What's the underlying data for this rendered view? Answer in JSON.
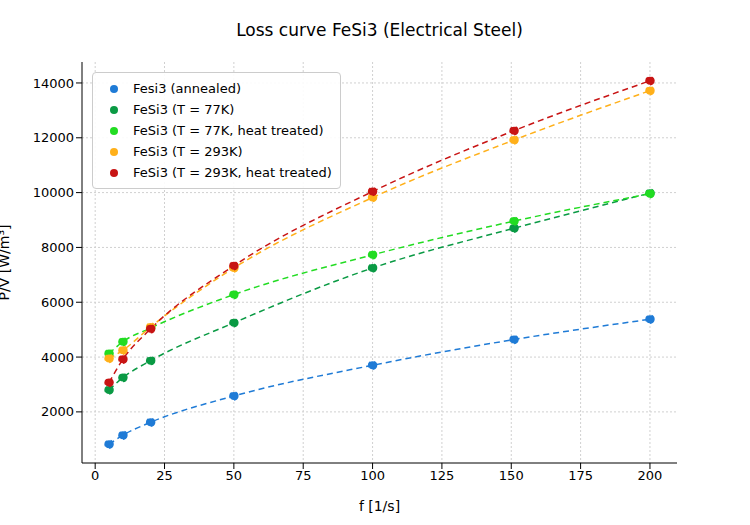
{
  "chart_data": {
    "type": "line",
    "title": "Loss curve FeSi3 (Electrical Steel)",
    "x_label": "f [1/s]",
    "y_label": "P/V [W/m³]",
    "x": [
      5,
      10,
      20,
      50,
      100,
      151,
      200
    ],
    "xlim": [
      -4.75,
      209.75
    ],
    "xticks": [
      0,
      25,
      50,
      75,
      100,
      125,
      150,
      175,
      200
    ],
    "ylim": [
      135,
      14765
    ],
    "yticks": [
      2000,
      4000,
      6000,
      8000,
      10000,
      12000,
      14000
    ],
    "grid": true,
    "legend": "upper left",
    "marker": "circle",
    "line_style": "dashed",
    "series": [
      {
        "name": "Fesi3 (annealed)",
        "color": "#1f7bd6",
        "values": [
          820,
          1150,
          1620,
          2580,
          3700,
          4640,
          5380
        ]
      },
      {
        "name": "FeSi3 (T = 77K)",
        "color": "#0a9a44",
        "values": [
          2800,
          3250,
          3870,
          5250,
          7250,
          8700,
          9980
        ]
      },
      {
        "name": "FeSi3 (T = 77K, heat treated)",
        "color": "#22dc22",
        "values": [
          4130,
          4560,
          5060,
          6280,
          7730,
          8960,
          9960
        ]
      },
      {
        "name": "FeSi3 (T = 293K)",
        "color": "#ffb01a",
        "values": [
          3950,
          4250,
          5100,
          7250,
          9820,
          11920,
          13720
        ]
      },
      {
        "name": "FeSi3 (T = 293K, heat treated)",
        "color": "#c81414",
        "values": [
          3070,
          3920,
          5030,
          7330,
          10040,
          12260,
          14080
        ]
      }
    ]
  }
}
